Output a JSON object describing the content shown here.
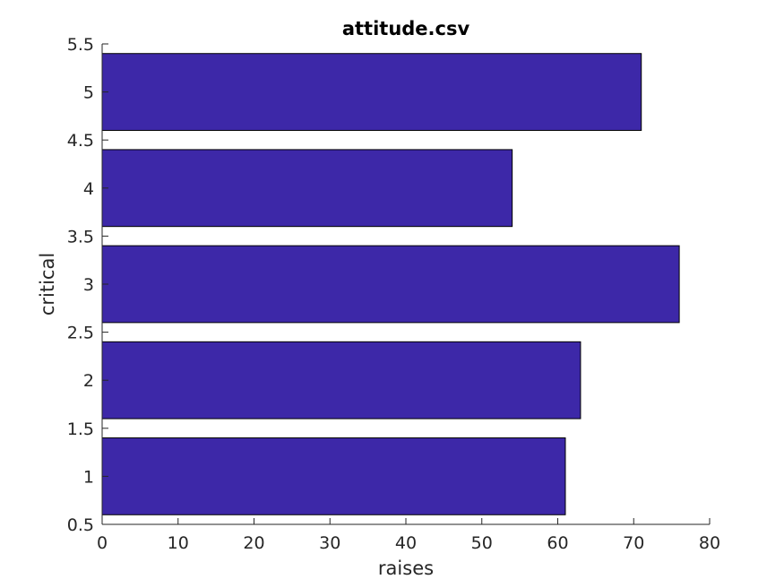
{
  "chart_data": {
    "type": "bar",
    "orientation": "horizontal",
    "title": "attitude.csv",
    "xlabel": "raises",
    "ylabel": "critical",
    "categories": [
      1,
      2,
      3,
      4,
      5
    ],
    "values": [
      61,
      63,
      76,
      54,
      71
    ],
    "xlim": [
      0,
      80
    ],
    "ylim": [
      0.5,
      5.5
    ],
    "xticks": [
      "0",
      "10",
      "20",
      "30",
      "40",
      "50",
      "60",
      "70",
      "80"
    ],
    "yticks": [
      "0.5",
      "1",
      "1.5",
      "2",
      "2.5",
      "3",
      "3.5",
      "4",
      "4.5",
      "5",
      "5.5"
    ],
    "bar_width": 0.8,
    "bar_color": "#3d28a8",
    "grid": false
  }
}
